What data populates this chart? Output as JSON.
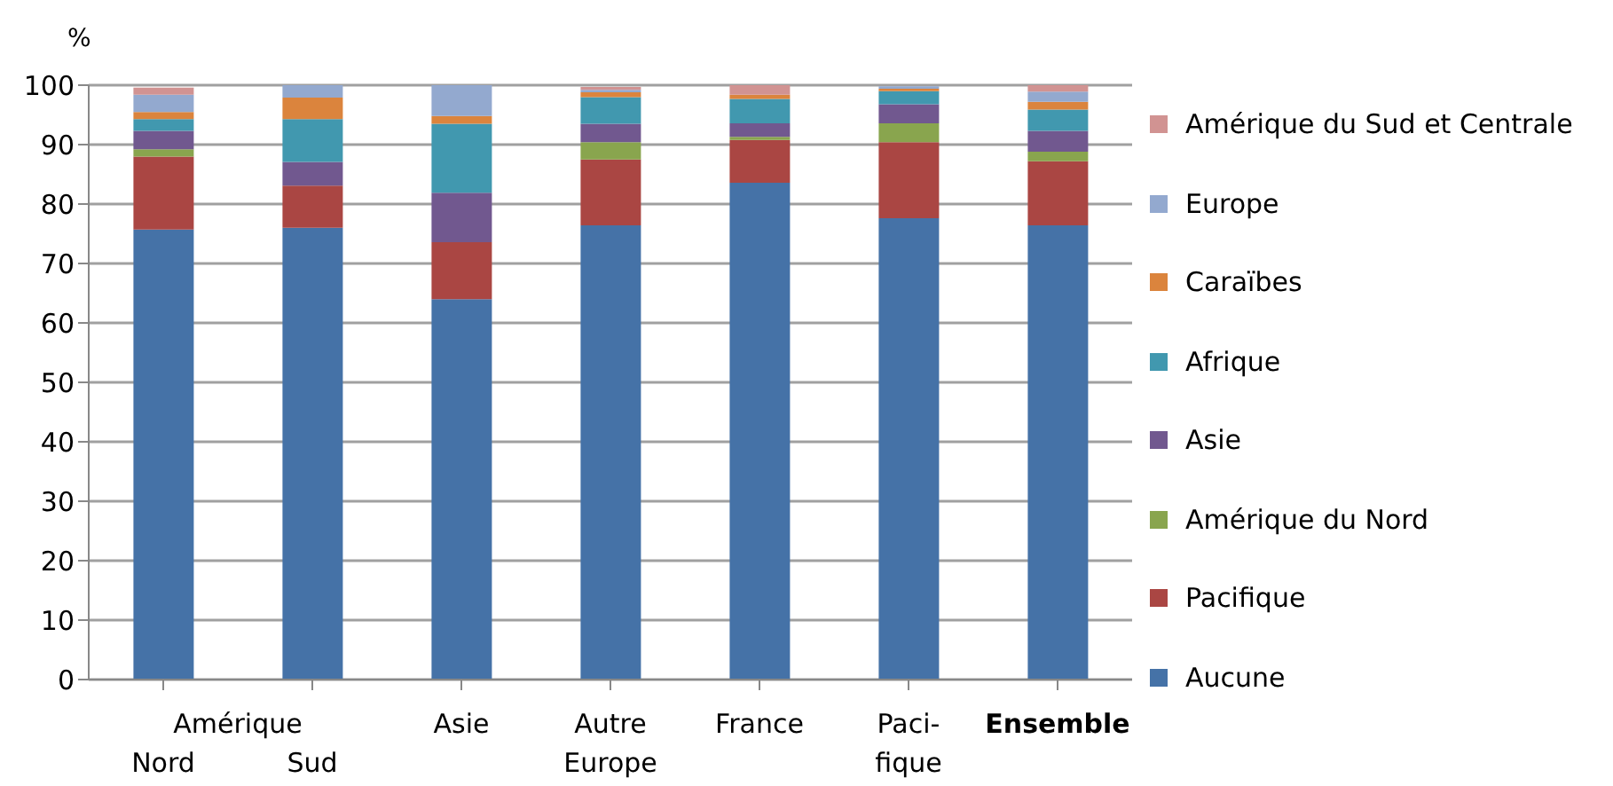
{
  "chart_data": {
    "type": "bar",
    "stacked": true,
    "ylabel": "%",
    "categories": [
      "Nord",
      "Sud",
      "Asie",
      "Autre\nEurope",
      "France",
      "Paci-\nfique",
      "Ensemble"
    ],
    "annotations": [
      "Amérique"
    ],
    "series": [
      {
        "name": "Aucune",
        "color": "#4572a7",
        "values": [
          75.7,
          76.0,
          64.0,
          76.4,
          83.6,
          77.6,
          76.4
        ]
      },
      {
        "name": "Pacifique",
        "color": "#aa4643",
        "values": [
          12.3,
          7.1,
          9.6,
          11.1,
          7.2,
          12.8,
          10.8
        ]
      },
      {
        "name": "Amérique du Nord",
        "color": "#89a54e",
        "values": [
          1.2,
          0,
          0,
          2.9,
          0.5,
          3.2,
          1.6
        ]
      },
      {
        "name": "Asie",
        "color": "#71588f",
        "values": [
          3.1,
          4.0,
          8.3,
          3.1,
          2.3,
          3.2,
          3.5
        ]
      },
      {
        "name": "Afrique",
        "color": "#4198af",
        "values": [
          2.0,
          7.2,
          11.6,
          4.5,
          4.1,
          2.2,
          3.6
        ]
      },
      {
        "name": "Caraïbes",
        "color": "#db843d",
        "values": [
          1.2,
          3.6,
          1.3,
          0.8,
          0.7,
          0.4,
          1.3
        ]
      },
      {
        "name": "Europe",
        "color": "#93a9cf",
        "values": [
          2.9,
          2.1,
          5.2,
          0.4,
          0,
          0.4,
          1.7
        ]
      },
      {
        "name": "Amérique du Sud et Centrale",
        "color": "#d19392",
        "values": [
          1.2,
          0,
          0,
          0.5,
          1.6,
          null,
          1.1
        ]
      }
    ],
    "ylim": [
      0,
      100
    ],
    "yticks": [
      0,
      10,
      20,
      30,
      40,
      50,
      60,
      70,
      80,
      90,
      100
    ],
    "grid": "y",
    "legend": "right"
  }
}
